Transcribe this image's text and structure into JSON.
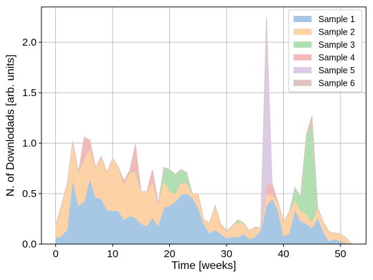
{
  "chart_data": {
    "type": "area",
    "stacked": true,
    "xlabel": "Time [weeks]",
    "ylabel": "N. of Downlodads [arb. units]",
    "xlim": [
      -2.5,
      54.5
    ],
    "ylim": [
      0,
      2.35
    ],
    "xticks": [
      0,
      10,
      20,
      30,
      40,
      50
    ],
    "yticks": [
      0.0,
      0.5,
      1.0,
      1.5,
      2.0
    ],
    "xtick_labels": [
      "0",
      "10",
      "20",
      "30",
      "40",
      "50"
    ],
    "ytick_labels": [
      "0.0",
      "0.5",
      "1.0",
      "1.5",
      "2.0"
    ],
    "grid": true,
    "legend_position": "top-right",
    "x": [
      0,
      1,
      2,
      3,
      4,
      5,
      6,
      7,
      8,
      9,
      10,
      11,
      12,
      13,
      14,
      15,
      16,
      17,
      18,
      19,
      20,
      21,
      22,
      23,
      24,
      25,
      26,
      27,
      28,
      29,
      30,
      31,
      32,
      33,
      34,
      35,
      36,
      37,
      38,
      39,
      40,
      41,
      42,
      43,
      44,
      45,
      46,
      47,
      48,
      49,
      50,
      51,
      52
    ],
    "series": [
      {
        "name": "Sample 1",
        "color": "#a6c8e4",
        "values": [
          0.06,
          0.08,
          0.14,
          0.64,
          0.38,
          0.42,
          0.65,
          0.46,
          0.45,
          0.34,
          0.33,
          0.33,
          0.24,
          0.28,
          0.26,
          0.2,
          0.18,
          0.26,
          0.18,
          0.36,
          0.38,
          0.42,
          0.49,
          0.5,
          0.46,
          0.36,
          0.2,
          0.11,
          0.14,
          0.1,
          0.06,
          0.07,
          0.07,
          0.1,
          0.05,
          0.07,
          0.14,
          0.38,
          0.45,
          0.34,
          0.08,
          0.1,
          0.34,
          0.23,
          0.2,
          0.16,
          0.26,
          0.12,
          0.03,
          0.05,
          0.03,
          0.01,
          0.0
        ]
      },
      {
        "name": "Sample 2",
        "color": "#fdd2a6",
        "values": [
          0.13,
          0.3,
          0.45,
          0.38,
          0.33,
          0.42,
          0.3,
          0.3,
          0.42,
          0.37,
          0.52,
          0.43,
          0.35,
          0.43,
          0.45,
          0.32,
          0.34,
          0.36,
          0.22,
          0.28,
          0.14,
          0.08,
          0.12,
          0.1,
          0.04,
          0.14,
          0.04,
          0.1,
          0.24,
          0.1,
          0.07,
          0.11,
          0.15,
          0.1,
          0.08,
          0.1,
          0.02,
          0.12,
          0.03,
          0.08,
          0.14,
          0.22,
          0.1,
          0.1,
          0.1,
          0.06,
          0.1,
          0.1,
          0.09,
          0.06,
          0.07,
          0.05,
          0.0
        ]
      },
      {
        "name": "Sample 3",
        "color": "#b1dfb1",
        "values": [
          0,
          0,
          0,
          0,
          0,
          0,
          0,
          0,
          0,
          0,
          0,
          0,
          0,
          0,
          0.02,
          0,
          0,
          0,
          0,
          0.12,
          0.22,
          0.19,
          0.13,
          0.11,
          0,
          0,
          0,
          0,
          0,
          0,
          0,
          0,
          0.02,
          0.01,
          0,
          0,
          0,
          0,
          0,
          0,
          0,
          0,
          0.12,
          0.14,
          0.78,
          0.98,
          0,
          0,
          0,
          0,
          0,
          0,
          0
        ]
      },
      {
        "name": "Sample 4",
        "color": "#f2b9b9",
        "values": [
          0,
          0,
          0,
          0,
          0,
          0.22,
          0.08,
          0,
          0,
          0,
          0,
          0,
          0.04,
          0.02,
          0.26,
          0,
          0,
          0.12,
          0,
          0,
          0,
          0,
          0,
          0,
          0,
          0,
          0,
          0,
          0,
          0,
          0,
          0,
          0,
          0,
          0,
          0,
          0,
          0.08,
          0.12,
          0,
          0,
          0,
          0,
          0,
          0,
          0.07,
          0,
          0,
          0,
          0,
          0,
          0,
          0
        ]
      },
      {
        "name": "Sample 5",
        "color": "#dccbe6",
        "values": [
          0,
          0,
          0,
          0,
          0,
          0,
          0,
          0,
          0,
          0,
          0,
          0,
          0,
          0,
          0,
          0,
          0,
          0,
          0,
          0,
          0,
          0,
          0,
          0,
          0,
          0,
          0,
          0,
          0,
          0,
          0,
          0,
          0,
          0,
          0,
          0,
          0,
          1.67,
          0,
          0,
          0,
          0,
          0,
          0,
          0,
          0,
          0,
          0,
          0,
          0,
          0,
          0,
          0
        ]
      },
      {
        "name": "Sample 6",
        "color": "#ddc5bf",
        "values": [
          0,
          0,
          0,
          0,
          0,
          0,
          0,
          0,
          0,
          0,
          0,
          0,
          0,
          0,
          0,
          0,
          0,
          0,
          0,
          0,
          0,
          0,
          0,
          0,
          0,
          0,
          0,
          0,
          0,
          0,
          0,
          0,
          0,
          0,
          0,
          0,
          0,
          0,
          0,
          0,
          0,
          0,
          0,
          0,
          0,
          0,
          0,
          0,
          0,
          0,
          0,
          0,
          0
        ]
      }
    ]
  }
}
